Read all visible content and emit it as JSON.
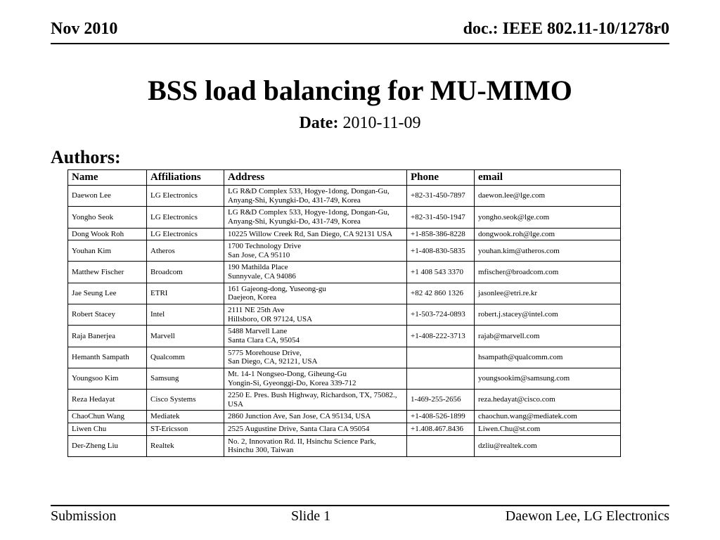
{
  "header": {
    "left": "Nov 2010",
    "right": "doc.: IEEE 802.11-10/1278r0"
  },
  "title": "BSS load balancing for MU-MIMO",
  "date": {
    "label": "Date:",
    "value": "2010-11-09"
  },
  "authors_label": "Authors:",
  "columns": {
    "name": "Name",
    "affiliations": "Affiliations",
    "address": "Address",
    "phone": "Phone",
    "email": "email"
  },
  "authors": [
    {
      "name": "Daewon Lee",
      "aff": "LG Electronics",
      "addr": "LG R&D Complex 533, Hogye-1dong, Dongan-Gu, Anyang-Shi, Kyungki-Do, 431-749, Korea",
      "phone": "+82-31-450-7897",
      "email": "daewon.lee@lge.com"
    },
    {
      "name": "Yongho Seok",
      "aff": "LG Electronics",
      "addr": "LG R&D Complex 533, Hogye-1dong, Dongan-Gu, Anyang-Shi, Kyungki-Do, 431-749, Korea",
      "phone": "+82-31-450-1947",
      "email": "yongho.seok@lge.com"
    },
    {
      "name": "Dong Wook Roh",
      "aff": "LG Electronics",
      "addr": "10225 Willow Creek Rd, San Diego, CA 92131 USA",
      "phone": "+1-858-386-8228",
      "email": "dongwook.roh@lge.com"
    },
    {
      "name": "Youhan Kim",
      "aff": "Atheros",
      "addr": "1700 Technology Drive\nSan Jose, CA 95110",
      "phone": "+1-408-830-5835",
      "email": "youhan.kim@atheros.com"
    },
    {
      "name": "Matthew Fischer",
      "aff": "Broadcom",
      "addr": "190 Mathilda Place\nSunnyvale, CA 94086",
      "phone": "+1 408 543 3370",
      "email": "mfischer@broadcom.com"
    },
    {
      "name": "Jae Seung Lee",
      "aff": "ETRI",
      "addr": "161 Gajeong-dong, Yuseong-gu\nDaejeon, Korea",
      "phone": "+82 42 860 1326",
      "email": "jasonlee@etri.re.kr"
    },
    {
      "name": "Robert Stacey",
      "aff": "Intel",
      "addr": "2111 NE 25th Ave\nHillsboro, OR 97124, USA",
      "phone": "+1-503-724-0893",
      "email": "robert.j.stacey@intel.com"
    },
    {
      "name": "Raja Banerjea",
      "aff": "Marvell",
      "addr": "5488 Marvell Lane\nSanta Clara CA, 95054",
      "phone": "+1-408-222-3713",
      "email": "rajab@marvell.com"
    },
    {
      "name": "Hemanth Sampath",
      "aff": "Qualcomm",
      "addr": "5775 Morehouse Drive,\nSan Diego, CA, 92121, USA",
      "phone": "",
      "email": "hsampath@qualcomm.com"
    },
    {
      "name": "Youngsoo Kim",
      "aff": "Samsung",
      "addr": "Mt. 14-1 Nongseo-Dong, Giheung-Gu\nYongin-Si, Gyeonggi-Do, Korea 339-712",
      "phone": "",
      "email": "youngsookim@samsung.com"
    },
    {
      "name": "Reza Hedayat",
      "aff": "Cisco Systems",
      "addr": "2250 E. Pres. Bush Highway, Richardson, TX, 75082., USA",
      "phone": "1-469-255-2656",
      "email": "reza.hedayat@cisco.com"
    },
    {
      "name": "ChaoChun Wang",
      "aff": "Mediatek",
      "addr": "2860 Junction Ave, San Jose, CA 95134, USA",
      "phone": "+1-408-526-1899",
      "email": "chaochun.wang@mediatek.com"
    },
    {
      "name": "Liwen Chu",
      "aff": "ST-Ericsson",
      "addr": "2525 Augustine Drive, Santa Clara CA 95054",
      "phone": "+1.408.467.8436",
      "email": "Liwen.Chu@st.com"
    },
    {
      "name": "Der-Zheng Liu",
      "aff": "Realtek",
      "addr": "No. 2, Innovation Rd. II, Hsinchu Science Park, Hsinchu 300, Taiwan",
      "phone": "",
      "email": "dzliu@realtek.com"
    }
  ],
  "footer": {
    "left": "Submission",
    "center": "Slide 1",
    "right": "Daewon Lee, LG Electronics"
  }
}
